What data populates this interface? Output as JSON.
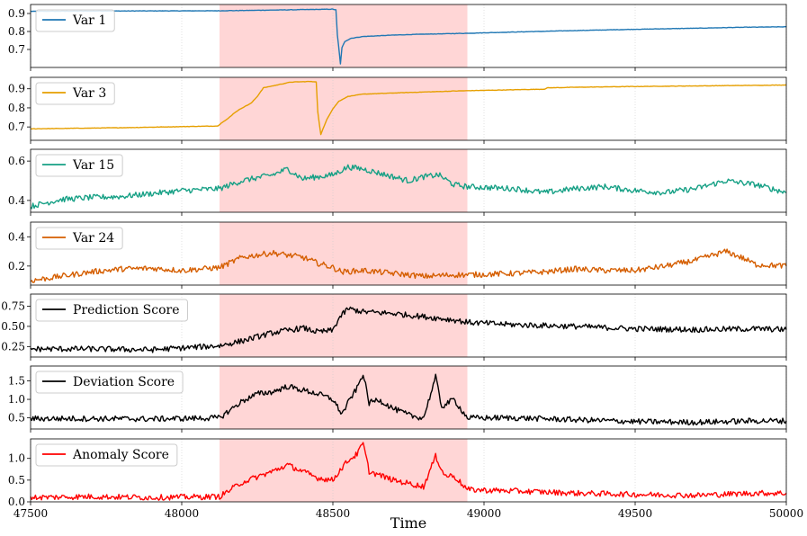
{
  "chart_data": {
    "type": "line",
    "xlabel": "Time",
    "xlim": [
      47500,
      50000
    ],
    "xticks": [
      "47500",
      "48000",
      "48500",
      "49000",
      "49500",
      "50000"
    ],
    "anomaly_region": [
      48125,
      48945
    ],
    "anomaly_region_color": "#ffd6d6",
    "grid": "vertical dotted",
    "legend_placement": "top-left",
    "panels": [
      {
        "series_name": "Var 1",
        "color": "#1f77b4",
        "ylim": [
          0.6,
          0.95
        ],
        "yticks": [
          "0.7",
          "0.8",
          "0.9"
        ],
        "points": [
          [
            47500,
            0.912
          ],
          [
            47800,
            0.914
          ],
          [
            48125,
            0.915
          ],
          [
            48300,
            0.919
          ],
          [
            48500,
            0.924
          ],
          [
            48510,
            0.92
          ],
          [
            48515,
            0.78
          ],
          [
            48525,
            0.62
          ],
          [
            48530,
            0.71
          ],
          [
            48540,
            0.745
          ],
          [
            48560,
            0.762
          ],
          [
            48600,
            0.772
          ],
          [
            48700,
            0.78
          ],
          [
            48800,
            0.785
          ],
          [
            48945,
            0.79
          ],
          [
            49100,
            0.797
          ],
          [
            49300,
            0.805
          ],
          [
            49500,
            0.812
          ],
          [
            49700,
            0.818
          ],
          [
            49850,
            0.823
          ],
          [
            50000,
            0.826
          ]
        ]
      },
      {
        "series_name": "Var 3",
        "color": "#e69f00",
        "ylim": [
          0.63,
          0.96
        ],
        "yticks": [
          "0.7",
          "0.8",
          "0.9"
        ],
        "points": [
          [
            47500,
            0.69
          ],
          [
            47800,
            0.696
          ],
          [
            48120,
            0.705
          ],
          [
            48130,
            0.72
          ],
          [
            48150,
            0.74
          ],
          [
            48175,
            0.775
          ],
          [
            48200,
            0.8
          ],
          [
            48230,
            0.825
          ],
          [
            48250,
            0.86
          ],
          [
            48270,
            0.905
          ],
          [
            48310,
            0.918
          ],
          [
            48360,
            0.935
          ],
          [
            48420,
            0.938
          ],
          [
            48445,
            0.937
          ],
          [
            48450,
            0.78
          ],
          [
            48460,
            0.66
          ],
          [
            48480,
            0.74
          ],
          [
            48500,
            0.795
          ],
          [
            48520,
            0.835
          ],
          [
            48550,
            0.86
          ],
          [
            48600,
            0.872
          ],
          [
            48700,
            0.878
          ],
          [
            48800,
            0.883
          ],
          [
            48900,
            0.888
          ],
          [
            48945,
            0.89
          ],
          [
            49100,
            0.895
          ],
          [
            49200,
            0.898
          ],
          [
            49210,
            0.905
          ],
          [
            49300,
            0.908
          ],
          [
            49500,
            0.912
          ],
          [
            49700,
            0.915
          ],
          [
            49900,
            0.918
          ],
          [
            50000,
            0.92
          ]
        ]
      },
      {
        "series_name": "Var 15",
        "color": "#16a085",
        "ylim": [
          0.34,
          0.66
        ],
        "yticks": [
          "0.4",
          "0.6"
        ],
        "points": [
          [
            47500,
            0.37
          ],
          [
            47600,
            0.405
          ],
          [
            47700,
            0.415
          ],
          [
            47800,
            0.42
          ],
          [
            47900,
            0.435
          ],
          [
            48000,
            0.45
          ],
          [
            48125,
            0.46
          ],
          [
            48200,
            0.5
          ],
          [
            48300,
            0.53
          ],
          [
            48350,
            0.56
          ],
          [
            48400,
            0.51
          ],
          [
            48450,
            0.52
          ],
          [
            48500,
            0.53
          ],
          [
            48550,
            0.57
          ],
          [
            48600,
            0.56
          ],
          [
            48650,
            0.54
          ],
          [
            48700,
            0.52
          ],
          [
            48750,
            0.5
          ],
          [
            48800,
            0.52
          ],
          [
            48850,
            0.53
          ],
          [
            48900,
            0.48
          ],
          [
            48945,
            0.47
          ],
          [
            49100,
            0.46
          ],
          [
            49200,
            0.44
          ],
          [
            49300,
            0.46
          ],
          [
            49400,
            0.47
          ],
          [
            49500,
            0.45
          ],
          [
            49600,
            0.44
          ],
          [
            49700,
            0.46
          ],
          [
            49800,
            0.5
          ],
          [
            49900,
            0.48
          ],
          [
            50000,
            0.44
          ]
        ]
      },
      {
        "series_name": "Var 24",
        "color": "#d55e00",
        "ylim": [
          0.07,
          0.5
        ],
        "yticks": [
          "0.2",
          "0.4"
        ],
        "points": [
          [
            47500,
            0.1
          ],
          [
            47600,
            0.13
          ],
          [
            47700,
            0.16
          ],
          [
            47800,
            0.18
          ],
          [
            47900,
            0.185
          ],
          [
            48000,
            0.17
          ],
          [
            48125,
            0.19
          ],
          [
            48200,
            0.26
          ],
          [
            48300,
            0.29
          ],
          [
            48400,
            0.26
          ],
          [
            48450,
            0.22
          ],
          [
            48500,
            0.19
          ],
          [
            48530,
            0.16
          ],
          [
            48600,
            0.17
          ],
          [
            48700,
            0.15
          ],
          [
            48800,
            0.13
          ],
          [
            48900,
            0.14
          ],
          [
            48945,
            0.14
          ],
          [
            49100,
            0.15
          ],
          [
            49200,
            0.16
          ],
          [
            49300,
            0.18
          ],
          [
            49400,
            0.17
          ],
          [
            49500,
            0.17
          ],
          [
            49600,
            0.2
          ],
          [
            49700,
            0.24
          ],
          [
            49800,
            0.3
          ],
          [
            49850,
            0.26
          ],
          [
            49900,
            0.21
          ],
          [
            50000,
            0.2
          ]
        ]
      },
      {
        "series_name": "Prediction Score",
        "color": "#000000",
        "ylim": [
          0.12,
          0.9
        ],
        "yticks": [
          "0.25",
          "0.50",
          "0.75"
        ],
        "points": [
          [
            47500,
            0.22
          ],
          [
            47700,
            0.22
          ],
          [
            47900,
            0.21
          ],
          [
            48125,
            0.26
          ],
          [
            48200,
            0.32
          ],
          [
            48300,
            0.42
          ],
          [
            48400,
            0.48
          ],
          [
            48450,
            0.43
          ],
          [
            48500,
            0.45
          ],
          [
            48520,
            0.6
          ],
          [
            48550,
            0.72
          ],
          [
            48600,
            0.68
          ],
          [
            48700,
            0.66
          ],
          [
            48800,
            0.62
          ],
          [
            48900,
            0.58
          ],
          [
            48945,
            0.55
          ],
          [
            49100,
            0.52
          ],
          [
            49300,
            0.5
          ],
          [
            49500,
            0.47
          ],
          [
            49700,
            0.46
          ],
          [
            49900,
            0.47
          ],
          [
            50000,
            0.46
          ]
        ]
      },
      {
        "series_name": "Deviation Score",
        "color": "#000000",
        "ylim": [
          0.2,
          1.9
        ],
        "yticks": [
          "0.5",
          "1.0",
          "1.5"
        ],
        "points": [
          [
            47500,
            0.48
          ],
          [
            47700,
            0.48
          ],
          [
            47900,
            0.47
          ],
          [
            48125,
            0.5
          ],
          [
            48200,
            0.95
          ],
          [
            48250,
            1.15
          ],
          [
            48300,
            1.2
          ],
          [
            48350,
            1.35
          ],
          [
            48400,
            1.25
          ],
          [
            48450,
            1.15
          ],
          [
            48500,
            1.0
          ],
          [
            48530,
            0.6
          ],
          [
            48560,
            1.05
          ],
          [
            48580,
            1.3
          ],
          [
            48600,
            1.7
          ],
          [
            48620,
            0.9
          ],
          [
            48650,
            1.0
          ],
          [
            48700,
            0.75
          ],
          [
            48760,
            0.55
          ],
          [
            48800,
            0.5
          ],
          [
            48840,
            1.6
          ],
          [
            48860,
            0.8
          ],
          [
            48900,
            1.0
          ],
          [
            48945,
            0.5
          ],
          [
            49100,
            0.5
          ],
          [
            49300,
            0.45
          ],
          [
            49500,
            0.4
          ],
          [
            49700,
            0.38
          ],
          [
            49900,
            0.42
          ],
          [
            50000,
            0.42
          ]
        ]
      },
      {
        "series_name": "Anomaly Score",
        "color": "#ff0000",
        "ylim": [
          0.0,
          1.45
        ],
        "yticks": [
          "0.0",
          "0.5",
          "1.0"
        ],
        "points": [
          [
            47500,
            0.1
          ],
          [
            47700,
            0.12
          ],
          [
            47900,
            0.1
          ],
          [
            48125,
            0.12
          ],
          [
            48200,
            0.45
          ],
          [
            48300,
            0.7
          ],
          [
            48350,
            0.85
          ],
          [
            48400,
            0.7
          ],
          [
            48450,
            0.55
          ],
          [
            48500,
            0.5
          ],
          [
            48520,
            0.7
          ],
          [
            48550,
            0.95
          ],
          [
            48580,
            1.1
          ],
          [
            48600,
            1.35
          ],
          [
            48620,
            0.7
          ],
          [
            48700,
            0.5
          ],
          [
            48800,
            0.35
          ],
          [
            48840,
            1.05
          ],
          [
            48870,
            0.6
          ],
          [
            48900,
            0.6
          ],
          [
            48945,
            0.28
          ],
          [
            49100,
            0.25
          ],
          [
            49300,
            0.2
          ],
          [
            49500,
            0.17
          ],
          [
            49700,
            0.15
          ],
          [
            49900,
            0.2
          ],
          [
            50000,
            0.2
          ]
        ]
      }
    ]
  }
}
